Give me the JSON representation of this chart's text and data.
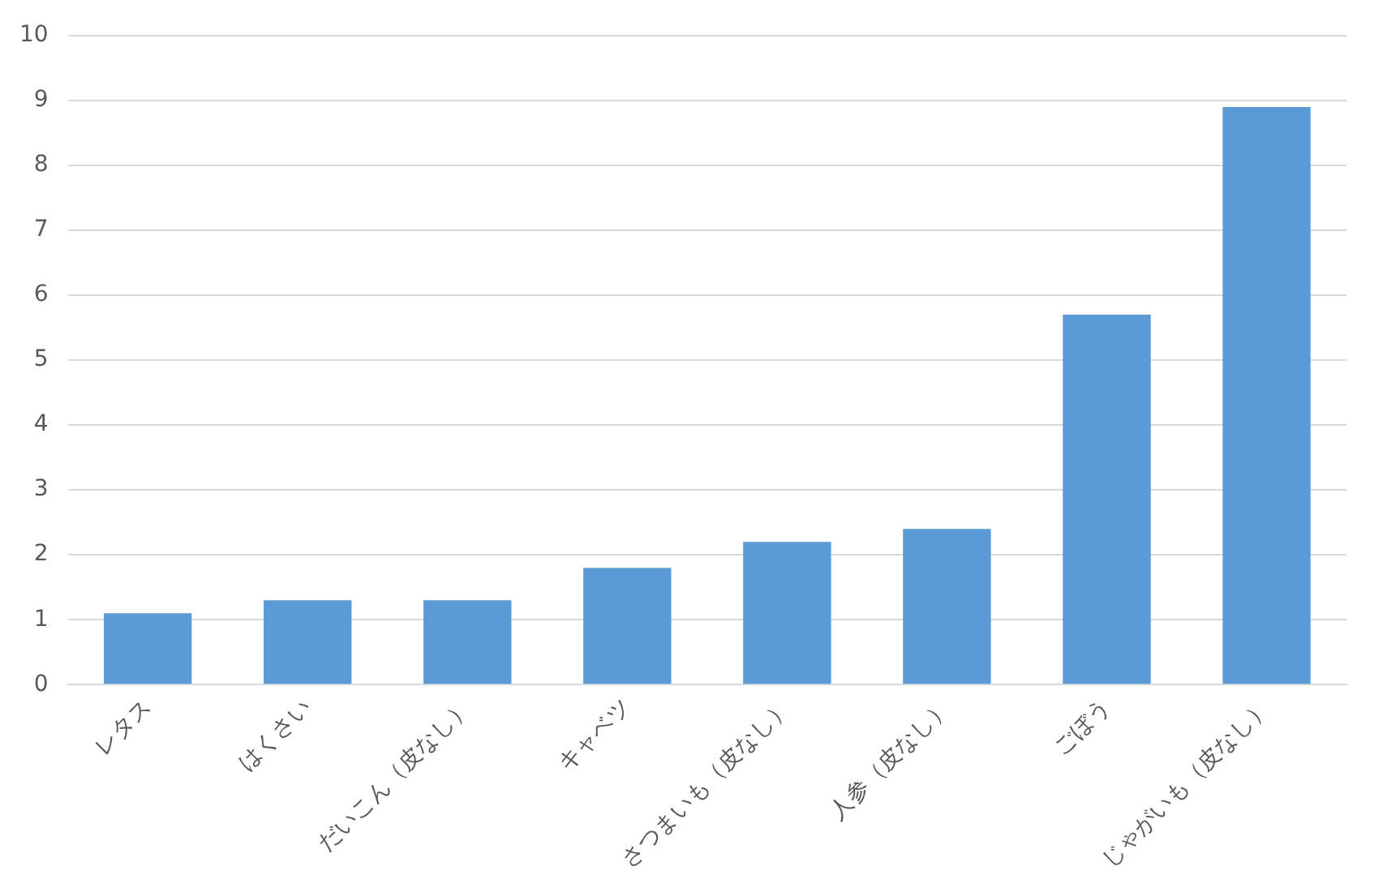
{
  "chart_data": {
    "type": "bar",
    "categories": [
      "レタス",
      "はくさい",
      "だいこん（皮なし）",
      "キャベツ",
      "さつまいも（皮なし）",
      "人参（皮なし）",
      "ごぼう",
      "じゃがいも（皮なし）"
    ],
    "values": [
      1.1,
      1.3,
      1.3,
      1.8,
      2.2,
      2.4,
      5.7,
      8.9
    ],
    "color": "#5b9bd5",
    "ylim": [
      0,
      10
    ],
    "yticks": [
      0,
      1,
      2,
      3,
      4,
      5,
      6,
      7,
      8,
      9,
      10
    ],
    "grid": "y"
  }
}
